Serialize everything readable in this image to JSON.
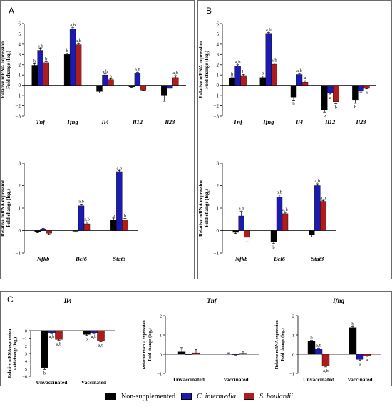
{
  "colors": {
    "non_supplemented": "#000000",
    "c_intermedia": "#1b1bb0",
    "s_boulardii": "#b01b1b"
  },
  "panels": [
    {
      "letter": "A"
    },
    {
      "letter": "B"
    },
    {
      "letter": "C"
    }
  ],
  "legend": [
    {
      "label": "Non-supplemented",
      "color": "#000000",
      "italic": false
    },
    {
      "label": "C. intermedia",
      "color": "#1b1bb0",
      "italic": true
    },
    {
      "label": "S. boulardii",
      "color": "#b01b1b",
      "italic": true
    }
  ],
  "chart_data": [
    {
      "id": "A-top",
      "type": "bar",
      "ylabel": [
        "Relative mRNA expression",
        "Fold change (log₂)"
      ],
      "ylim": [
        -3,
        6
      ],
      "yticks": [
        -3,
        -2,
        -1,
        0,
        1,
        2,
        3,
        4,
        5,
        6
      ],
      "categories": [
        "Tnf",
        "Ifng",
        "Il4",
        "Il12",
        "Il23"
      ],
      "italic_categories": true,
      "series": [
        {
          "name": "Non-supplemented",
          "values": [
            1.95,
            3.0,
            -0.6,
            -0.15,
            -0.95
          ],
          "errors": [
            0.15,
            0.1,
            0.15,
            0.05,
            0.6
          ]
        },
        {
          "name": "C. intermedia",
          "values": [
            3.4,
            5.5,
            1.0,
            1.2,
            -0.3
          ],
          "errors": [
            0.15,
            0.1,
            0.1,
            0.05,
            0.25
          ]
        },
        {
          "name": "S. boulardii",
          "values": [
            2.2,
            3.95,
            0.55,
            -0.45,
            0.75
          ],
          "errors": [
            0.1,
            0.1,
            0.1,
            0.05,
            0.2
          ]
        }
      ],
      "annotations": [
        [
          "b",
          "a,b",
          "b"
        ],
        [
          "b",
          "a,b",
          "a,b"
        ],
        [
          "",
          "a,b",
          "a"
        ],
        [
          "",
          "a,b",
          ""
        ],
        [
          "",
          "",
          "a,b"
        ]
      ]
    },
    {
      "id": "A-bottom",
      "type": "bar",
      "ylabel": [
        "Relative mRNA expression",
        "Fold change (log₂)"
      ],
      "ylim": [
        -1,
        3
      ],
      "yticks": [
        -1,
        0,
        1,
        2,
        3
      ],
      "categories": [
        "Nfkb",
        "Bcl6",
        "Stat3"
      ],
      "italic_categories": true,
      "series": [
        {
          "name": "Non-supplemented",
          "values": [
            -0.05,
            -0.03,
            0.48
          ],
          "errors": [
            0.05,
            0.04,
            0.08
          ]
        },
        {
          "name": "C. intermedia",
          "values": [
            0.07,
            1.1,
            2.62
          ],
          "errors": [
            0.03,
            0.08,
            0.05
          ]
        },
        {
          "name": "S. boulardii",
          "values": [
            -0.12,
            0.3,
            0.48
          ],
          "errors": [
            0.05,
            0.08,
            0.06
          ]
        }
      ],
      "annotations": [
        [
          "",
          "",
          ""
        ],
        [
          "",
          "a,b",
          "a,b"
        ],
        [
          "b",
          "a,b",
          "b"
        ]
      ]
    },
    {
      "id": "B-top",
      "type": "bar",
      "ylabel": [
        "Relative mRNA expression",
        "Fold change (log₂)"
      ],
      "ylim": [
        -3,
        6
      ],
      "yticks": [
        -3,
        -2,
        -1,
        0,
        1,
        2,
        3,
        4,
        5,
        6
      ],
      "categories": [
        "Tnf",
        "Ifng",
        "Il4",
        "Il12",
        "Il23"
      ],
      "italic_categories": true,
      "series": [
        {
          "name": "Non-supplemented",
          "values": [
            0.7,
            0.75,
            -1.15,
            -2.4,
            -1.4
          ],
          "errors": [
            0.1,
            0.15,
            0.3,
            0.2,
            0.35
          ]
        },
        {
          "name": "C. intermedia",
          "values": [
            1.9,
            5.05,
            1.05,
            -0.75,
            -0.55
          ],
          "errors": [
            0.1,
            0.08,
            0.1,
            0.1,
            0.1
          ]
        },
        {
          "name": "S. boulardii",
          "values": [
            0.95,
            2.05,
            0.3,
            -1.6,
            -0.3
          ],
          "errors": [
            0.1,
            0.1,
            0.15,
            0.2,
            0.05
          ]
        }
      ],
      "annotations": [
        [
          "b",
          "a,b",
          "b"
        ],
        [
          "b",
          "a,b",
          "a,b"
        ],
        [
          "b",
          "a,b",
          "a"
        ],
        [
          "b",
          "a",
          "b"
        ],
        [
          "b",
          "",
          "a"
        ]
      ]
    },
    {
      "id": "B-bottom",
      "type": "bar",
      "ylabel": [
        "Relative mRNA expression",
        "Fold change (log₂)"
      ],
      "ylim": [
        -1,
        3
      ],
      "yticks": [
        -1,
        0,
        1,
        2,
        3
      ],
      "categories": [
        "Nfkb",
        "Bcl6",
        "Stat3"
      ],
      "italic_categories": true,
      "series": [
        {
          "name": "Non-supplemented",
          "values": [
            -0.08,
            -0.5,
            -0.2
          ],
          "errors": [
            0.05,
            0.08,
            0.08
          ]
        },
        {
          "name": "C. intermedia",
          "values": [
            0.65,
            1.5,
            2.0
          ],
          "errors": [
            0.2,
            0.08,
            0.08
          ]
        },
        {
          "name": "S. boulardii",
          "values": [
            -0.3,
            0.75,
            1.3
          ],
          "errors": [
            0.2,
            0.06,
            0.04
          ]
        }
      ],
      "annotations": [
        [
          "",
          "a,b",
          ""
        ],
        [
          "b",
          "a,b",
          "a,b"
        ],
        [
          "",
          "a,b",
          "a,b"
        ]
      ]
    },
    {
      "id": "C-Il4",
      "type": "bar",
      "title": "Il4",
      "italic_title": true,
      "ylabel": [
        "Relative mRNA expression",
        "Fold change (log₂)"
      ],
      "ylim": [
        -6,
        0
      ],
      "yticks": [
        -6,
        -5,
        -4,
        -3,
        -2,
        -1,
        0
      ],
      "categories": [
        "Unvaccinated",
        "Vaccinated"
      ],
      "italic_categories": false,
      "series": [
        {
          "name": "Non-supplemented",
          "values": [
            -4.85,
            -0.5
          ],
          "errors": [
            0.25,
            0.1
          ]
        },
        {
          "name": "C. intermedia",
          "values": [
            -0.25,
            -0.25
          ],
          "errors": [
            0.05,
            0.05
          ]
        },
        {
          "name": "S. boulardii",
          "values": [
            -1.15,
            -1.35
          ],
          "errors": [
            0.1,
            0.1
          ]
        }
      ],
      "annotations": [
        [
          "b",
          "a,b",
          "a,b"
        ],
        [
          "b",
          "a,b",
          "a,b"
        ]
      ]
    },
    {
      "id": "C-Tnf",
      "type": "bar",
      "title": "Tnf",
      "italic_title": true,
      "ylabel": [
        "Relative mRNA expression",
        "Fold change (log₂)"
      ],
      "ylim": [
        -1,
        2
      ],
      "yticks": [
        -1,
        0,
        1,
        2
      ],
      "categories": [
        "Unvaccinated",
        "Vaccinated"
      ],
      "italic_categories": false,
      "series": [
        {
          "name": "Non-supplemented",
          "values": [
            0.12,
            0.02
          ],
          "errors": [
            0.22,
            0.05
          ]
        },
        {
          "name": "C. intermedia",
          "values": [
            0.0,
            -0.02
          ],
          "errors": [
            0.02,
            0.05
          ]
        },
        {
          "name": "S. boulardii",
          "values": [
            0.07,
            0.05
          ],
          "errors": [
            0.18,
            0.1
          ]
        }
      ],
      "annotations": [
        [
          "",
          "",
          ""
        ],
        [
          "",
          "",
          ""
        ]
      ]
    },
    {
      "id": "C-Ifng",
      "type": "bar",
      "title": "Ifng",
      "italic_title": true,
      "ylabel": [
        "Relative mRNA expression",
        "Fold change (log₂)"
      ],
      "ylim": [
        -1,
        2
      ],
      "yticks": [
        -1,
        0,
        1,
        2
      ],
      "categories": [
        "Unvaccinated",
        "Vaccinated"
      ],
      "italic_categories": false,
      "series": [
        {
          "name": "Non-supplemented",
          "values": [
            0.68,
            1.38
          ],
          "errors": [
            0.04,
            0.04
          ]
        },
        {
          "name": "C. intermedia",
          "values": [
            0.27,
            -0.27
          ],
          "errors": [
            0.04,
            0.04
          ]
        },
        {
          "name": "S. boulardii",
          "values": [
            -0.6,
            -0.08
          ],
          "errors": [
            0.06,
            0.03
          ]
        }
      ],
      "annotations": [
        [
          "b",
          "a,b",
          "a,b"
        ],
        [
          "b",
          "a",
          "a"
        ]
      ]
    }
  ]
}
